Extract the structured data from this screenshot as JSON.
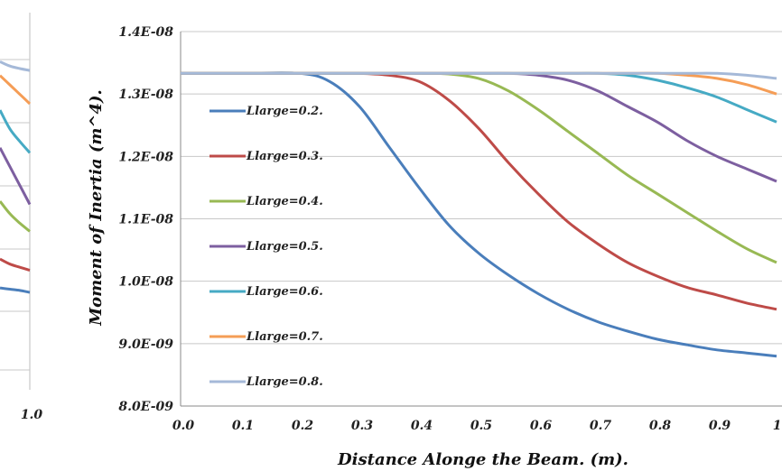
{
  "chart_data": [
    {
      "type": "line",
      "partial": true,
      "xlabel": "",
      "ylabel": "",
      "x_ticks_visible": [
        "1.0"
      ],
      "x": [
        0.85,
        0.9,
        0.95,
        1.0
      ],
      "series": [
        {
          "values": [
            1.322e-08,
            1.315e-08,
            1.311e-08,
            1.308e-08
          ]
        },
        {
          "values": [
            1.3e-08,
            1.285e-08,
            1.27e-08,
            1.255e-08
          ]
        },
        {
          "values": [
            1.245e-08,
            1.215e-08,
            1.195e-08,
            1.177e-08
          ]
        },
        {
          "values": [
            1.185e-08,
            1.155e-08,
            1.125e-08,
            1.095e-08
          ]
        },
        {
          "values": [
            1.1e-08,
            1.08e-08,
            1.065e-08,
            1.052e-08
          ]
        },
        {
          "values": [
            1.008e-08,
            1e-08,
            9.95e-09,
            9.9e-09
          ]
        },
        {
          "values": [
            9.62e-09,
            9.6e-09,
            9.58e-09,
            9.55e-09
          ]
        }
      ]
    },
    {
      "type": "line",
      "title": "",
      "xlabel": "Distance Alonge the Beam. (m).",
      "ylabel": "Moment of Inertia (m^4).",
      "xlim": [
        0.0,
        1.0
      ],
      "ylim": [
        8e-09,
        1.4e-08
      ],
      "x_ticks": [
        "0.0",
        "0.1",
        "0.2",
        "0.3",
        "0.4",
        "0.5",
        "0.6",
        "0.7",
        "0.8",
        "0.9",
        "1."
      ],
      "y_ticks": [
        "8.0E-09",
        "9.0E-09",
        "1.0E-08",
        "1.1E-08",
        "1.2E-08",
        "1.3E-08",
        "1.4E-08"
      ],
      "y_tick_values": [
        8e-09,
        9e-09,
        1e-08,
        1.1e-08,
        1.2e-08,
        1.3e-08,
        1.4e-08
      ],
      "grid": "horizontal",
      "legend_position": "left",
      "x": [
        0.0,
        0.1,
        0.2,
        0.25,
        0.3,
        0.35,
        0.4,
        0.45,
        0.5,
        0.55,
        0.6,
        0.65,
        0.7,
        0.75,
        0.8,
        0.85,
        0.9,
        0.95,
        1.0
      ],
      "series": [
        {
          "name": "Llarge=0.2.",
          "color": "#4a7ebb",
          "values": [
            1.333e-08,
            1.333e-08,
            1.333e-08,
            1.32e-08,
            1.28e-08,
            1.215e-08,
            1.15e-08,
            1.09e-08,
            1.045e-08,
            1.01e-08,
            9.8e-09,
            9.55e-09,
            9.35e-09,
            9.2e-09,
            9.07e-09,
            8.98e-09,
            8.9e-09,
            8.85e-09,
            8.8e-09
          ]
        },
        {
          "name": "Llarge=0.3.",
          "color": "#be4b48",
          "values": [
            1.333e-08,
            1.333e-08,
            1.333e-08,
            1.333e-08,
            1.333e-08,
            1.33e-08,
            1.32e-08,
            1.29e-08,
            1.245e-08,
            1.19e-08,
            1.14e-08,
            1.095e-08,
            1.06e-08,
            1.03e-08,
            1.008e-08,
            9.9e-09,
            9.78e-09,
            9.65e-09,
            9.55e-09
          ]
        },
        {
          "name": "Llarge=0.4.",
          "color": "#98b954",
          "values": [
            1.333e-08,
            1.333e-08,
            1.333e-08,
            1.333e-08,
            1.333e-08,
            1.333e-08,
            1.333e-08,
            1.332e-08,
            1.325e-08,
            1.305e-08,
            1.275e-08,
            1.24e-08,
            1.205e-08,
            1.17e-08,
            1.14e-08,
            1.11e-08,
            1.08e-08,
            1.052e-08,
            1.03e-08
          ]
        },
        {
          "name": "Llarge=0.5.",
          "color": "#7d5fa0",
          "values": [
            1.333e-08,
            1.333e-08,
            1.333e-08,
            1.333e-08,
            1.333e-08,
            1.333e-08,
            1.333e-08,
            1.333e-08,
            1.333e-08,
            1.333e-08,
            1.33e-08,
            1.322e-08,
            1.305e-08,
            1.28e-08,
            1.255e-08,
            1.225e-08,
            1.2e-08,
            1.18e-08,
            1.16e-08
          ]
        },
        {
          "name": "Llarge=0.6.",
          "color": "#46aac4",
          "values": [
            1.333e-08,
            1.333e-08,
            1.333e-08,
            1.333e-08,
            1.333e-08,
            1.333e-08,
            1.333e-08,
            1.333e-08,
            1.333e-08,
            1.333e-08,
            1.333e-08,
            1.333e-08,
            1.333e-08,
            1.33e-08,
            1.322e-08,
            1.31e-08,
            1.295e-08,
            1.275e-08,
            1.255e-08
          ]
        },
        {
          "name": "Llarge=0.7.",
          "color": "#f59d56",
          "values": [
            1.333e-08,
            1.333e-08,
            1.333e-08,
            1.333e-08,
            1.333e-08,
            1.333e-08,
            1.333e-08,
            1.333e-08,
            1.333e-08,
            1.333e-08,
            1.333e-08,
            1.333e-08,
            1.333e-08,
            1.333e-08,
            1.333e-08,
            1.33e-08,
            1.325e-08,
            1.315e-08,
            1.3e-08
          ]
        },
        {
          "name": "Llarge=0.8.",
          "color": "#a5b9d8",
          "values": [
            1.333e-08,
            1.333e-08,
            1.333e-08,
            1.333e-08,
            1.333e-08,
            1.333e-08,
            1.333e-08,
            1.333e-08,
            1.333e-08,
            1.333e-08,
            1.333e-08,
            1.333e-08,
            1.333e-08,
            1.333e-08,
            1.333e-08,
            1.333e-08,
            1.333e-08,
            1.33e-08,
            1.325e-08
          ]
        }
      ]
    }
  ]
}
